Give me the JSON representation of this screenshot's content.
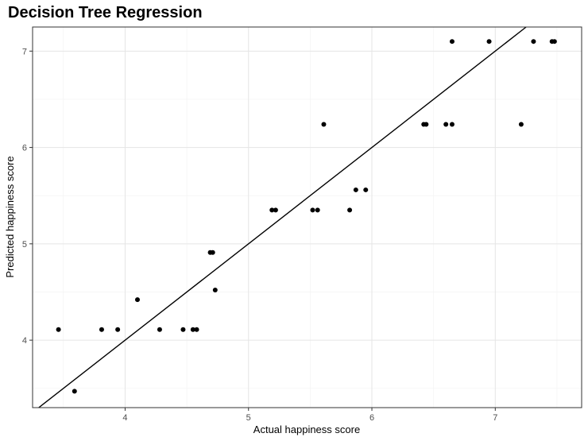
{
  "chart_data": {
    "type": "scatter",
    "title": "Decision Tree Regression",
    "xlabel": "Actual happiness score",
    "ylabel": "Predicted happiness score",
    "xlim": [
      3.25,
      7.7
    ],
    "ylim": [
      3.3,
      7.25
    ],
    "x_ticks": [
      4,
      5,
      6,
      7
    ],
    "y_ticks": [
      4,
      5,
      6,
      7
    ],
    "grid": true,
    "reference_line": {
      "slope": 1,
      "intercept": 0,
      "label": ""
    },
    "points": [
      {
        "x": 3.46,
        "y": 4.11
      },
      {
        "x": 3.59,
        "y": 3.47
      },
      {
        "x": 3.81,
        "y": 4.11
      },
      {
        "x": 3.94,
        "y": 4.11
      },
      {
        "x": 4.1,
        "y": 4.42
      },
      {
        "x": 4.28,
        "y": 4.11
      },
      {
        "x": 4.47,
        "y": 4.11
      },
      {
        "x": 4.55,
        "y": 4.11
      },
      {
        "x": 4.58,
        "y": 4.11
      },
      {
        "x": 4.69,
        "y": 4.91
      },
      {
        "x": 4.71,
        "y": 4.91
      },
      {
        "x": 4.73,
        "y": 4.52
      },
      {
        "x": 5.19,
        "y": 5.35
      },
      {
        "x": 5.22,
        "y": 5.35
      },
      {
        "x": 5.52,
        "y": 5.35
      },
      {
        "x": 5.56,
        "y": 5.35
      },
      {
        "x": 5.61,
        "y": 6.24
      },
      {
        "x": 5.82,
        "y": 5.35
      },
      {
        "x": 5.87,
        "y": 5.56
      },
      {
        "x": 5.95,
        "y": 5.56
      },
      {
        "x": 6.42,
        "y": 6.24
      },
      {
        "x": 6.44,
        "y": 6.24
      },
      {
        "x": 6.6,
        "y": 6.24
      },
      {
        "x": 6.65,
        "y": 7.1
      },
      {
        "x": 6.65,
        "y": 6.24
      },
      {
        "x": 6.95,
        "y": 7.1
      },
      {
        "x": 7.21,
        "y": 6.24
      },
      {
        "x": 7.31,
        "y": 7.1
      },
      {
        "x": 7.46,
        "y": 7.1
      },
      {
        "x": 7.48,
        "y": 7.1
      }
    ]
  }
}
